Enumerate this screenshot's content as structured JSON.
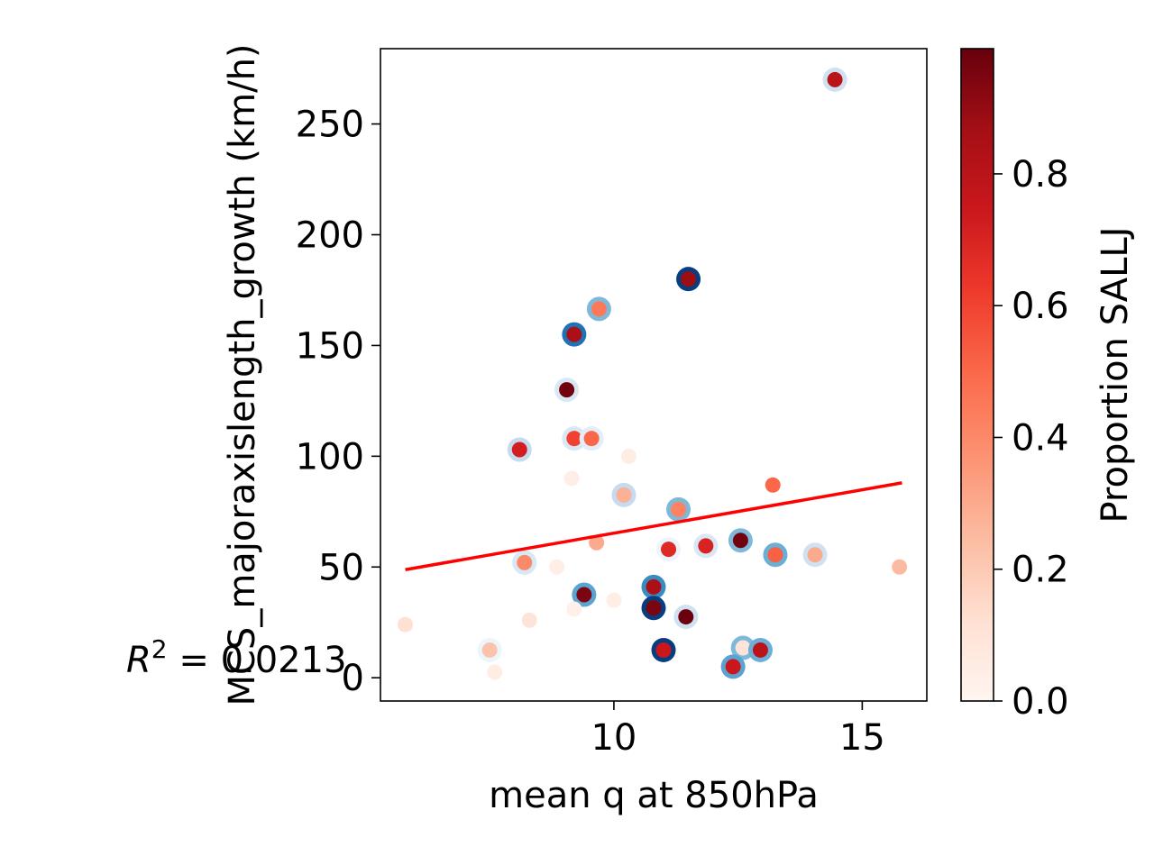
{
  "chart_data": {
    "type": "scatter",
    "xlabel": "mean q at 850hPa",
    "ylabel": "MCS_majoraxislength_growth (km/h)",
    "xlim": [
      5.3,
      16.3
    ],
    "ylim": [
      -10.5,
      284
    ],
    "xticks": [
      10,
      15
    ],
    "yticks": [
      0,
      50,
      100,
      150,
      200,
      250
    ],
    "colorbar": {
      "label": "Proportion SALLJ",
      "colormap": "Reds",
      "range": [
        0,
        0.99
      ],
      "ticks": [
        "0.0",
        "0.2",
        "0.4",
        "0.6",
        "0.8"
      ],
      "tick_values": [
        0.0,
        0.2,
        0.4,
        0.6,
        0.8
      ]
    },
    "annotation": {
      "prefix": "R",
      "superscript": "2",
      "suffix": " = 0.0213"
    },
    "fit_line": {
      "x": [
        5.8,
        15.8
      ],
      "y": [
        48.8,
        88
      ],
      "color": "#ff0000"
    },
    "ring_colormap": "Blues",
    "points": [
      {
        "x": 14.45,
        "y": 270,
        "c": 0.8,
        "ring": 0.2
      },
      {
        "x": 11.5,
        "y": 180,
        "c": 0.88,
        "ring": 0.95
      },
      {
        "x": 9.7,
        "y": 166.5,
        "c": 0.45,
        "ring": 0.45
      },
      {
        "x": 9.2,
        "y": 155,
        "c": 0.85,
        "ring": 0.75
      },
      {
        "x": 9.05,
        "y": 130,
        "c": 0.97,
        "ring": 0.15
      },
      {
        "x": 8.1,
        "y": 103,
        "c": 0.72,
        "ring": 0.25
      },
      {
        "x": 9.2,
        "y": 108,
        "c": 0.6,
        "ring": 0.15
      },
      {
        "x": 9.55,
        "y": 108,
        "c": 0.5,
        "ring": 0.1
      },
      {
        "x": 10.3,
        "y": 100,
        "c": 0.05,
        "ring": null
      },
      {
        "x": 9.15,
        "y": 90,
        "c": 0.04,
        "ring": null
      },
      {
        "x": 10.2,
        "y": 82.5,
        "c": 0.28,
        "ring": 0.25
      },
      {
        "x": 11.3,
        "y": 76,
        "c": 0.42,
        "ring": 0.45
      },
      {
        "x": 13.2,
        "y": 87,
        "c": 0.5,
        "ring": null
      },
      {
        "x": 9.65,
        "y": 61,
        "c": 0.3,
        "ring": null
      },
      {
        "x": 11.1,
        "y": 58,
        "c": 0.68,
        "ring": 0.05
      },
      {
        "x": 11.85,
        "y": 59.5,
        "c": 0.7,
        "ring": 0.15
      },
      {
        "x": 12.55,
        "y": 62,
        "c": 0.97,
        "ring": 0.45
      },
      {
        "x": 13.25,
        "y": 55.5,
        "c": 0.52,
        "ring": 0.5
      },
      {
        "x": 14.05,
        "y": 55.5,
        "c": 0.3,
        "ring": 0.2
      },
      {
        "x": 15.75,
        "y": 50,
        "c": 0.25,
        "ring": null
      },
      {
        "x": 8.2,
        "y": 52,
        "c": 0.4,
        "ring": 0.15
      },
      {
        "x": 8.85,
        "y": 50,
        "c": 0.04,
        "ring": null
      },
      {
        "x": 9.4,
        "y": 37.5,
        "c": 0.95,
        "ring": 0.55
      },
      {
        "x": 10.8,
        "y": 41,
        "c": 0.85,
        "ring": 0.65
      },
      {
        "x": 10.0,
        "y": 35,
        "c": 0.04,
        "ring": null
      },
      {
        "x": 10.8,
        "y": 31.5,
        "c": 0.95,
        "ring": 0.95
      },
      {
        "x": 9.2,
        "y": 31,
        "c": 0.03,
        "ring": null
      },
      {
        "x": 11.45,
        "y": 27.5,
        "c": 0.98,
        "ring": 0.2
      },
      {
        "x": 8.3,
        "y": 26,
        "c": 0.1,
        "ring": null
      },
      {
        "x": 5.8,
        "y": 24,
        "c": 0.12,
        "ring": null
      },
      {
        "x": 7.5,
        "y": 12.5,
        "c": 0.22,
        "ring": 0.05
      },
      {
        "x": 7.6,
        "y": 2.5,
        "c": 0.05,
        "ring": null
      },
      {
        "x": 11.0,
        "y": 12.5,
        "c": 0.75,
        "ring": 0.95
      },
      {
        "x": 12.6,
        "y": 13.5,
        "c": 0.1,
        "ring": 0.45
      },
      {
        "x": 12.4,
        "y": 5,
        "c": 0.75,
        "ring": 0.55
      },
      {
        "x": 12.95,
        "y": 12.5,
        "c": 0.8,
        "ring": 0.5
      }
    ]
  }
}
